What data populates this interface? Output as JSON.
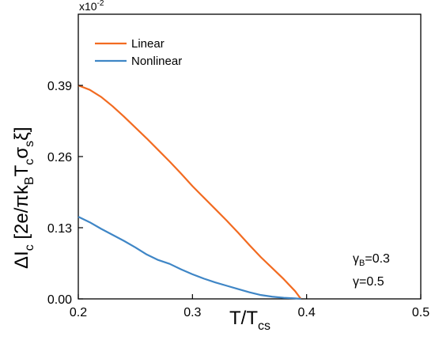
{
  "chart_data": {
    "type": "line",
    "multiplier_label": "x10",
    "multiplier_exp": "-2",
    "xlabel": {
      "main": "T/T",
      "sub": "cs"
    },
    "ylabel": "ΔI_c [2e/πk_B T_c σ_s ξ]",
    "xlim": [
      0.2,
      0.5
    ],
    "ylim": [
      0.0,
      0.52
    ],
    "xticks": [
      0.2,
      0.3,
      0.4,
      0.5
    ],
    "xtick_labels": [
      "0.2",
      "0.3",
      "0.4",
      "0.5"
    ],
    "yticks": [
      0.0,
      0.13,
      0.26,
      0.39
    ],
    "ytick_labels": [
      "0.00",
      "0.13",
      "0.26",
      "0.39"
    ],
    "grid": false,
    "legend_position": "top-left",
    "series": [
      {
        "name": "Linear",
        "color": "#f26b21",
        "x": [
          0.2,
          0.21,
          0.22,
          0.23,
          0.24,
          0.25,
          0.26,
          0.27,
          0.28,
          0.29,
          0.3,
          0.31,
          0.32,
          0.33,
          0.34,
          0.35,
          0.36,
          0.37,
          0.38,
          0.39,
          0.395
        ],
        "y": [
          0.39,
          0.382,
          0.369,
          0.352,
          0.333,
          0.313,
          0.293,
          0.272,
          0.251,
          0.229,
          0.206,
          0.185,
          0.164,
          0.143,
          0.121,
          0.098,
          0.076,
          0.056,
          0.036,
          0.014,
          0.0
        ]
      },
      {
        "name": "Nonlinear",
        "color": "#3f86c6",
        "x": [
          0.2,
          0.21,
          0.22,
          0.23,
          0.24,
          0.25,
          0.26,
          0.27,
          0.28,
          0.29,
          0.3,
          0.31,
          0.32,
          0.33,
          0.34,
          0.35,
          0.36,
          0.37,
          0.38,
          0.39,
          0.395
        ],
        "y": [
          0.15,
          0.14,
          0.128,
          0.117,
          0.106,
          0.094,
          0.081,
          0.071,
          0.064,
          0.054,
          0.045,
          0.037,
          0.03,
          0.024,
          0.018,
          0.012,
          0.007,
          0.004,
          0.002,
          0.001,
          0.0
        ]
      }
    ],
    "annotations": [
      {
        "symbol": "γ",
        "subscript": "B",
        "text": "=0.3"
      },
      {
        "symbol": "γ",
        "subscript": "",
        "text": "=0.5"
      }
    ]
  }
}
